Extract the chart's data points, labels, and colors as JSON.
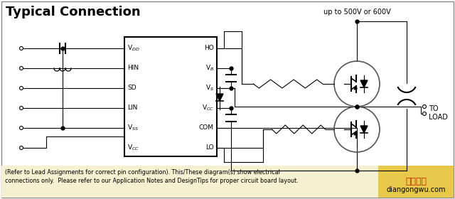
{
  "title": "Typical Connection",
  "subtitle_voltage": "up to 500V or 600V",
  "to_load_label": "TO\nLOAD",
  "ic_left_pins": [
    "V$_{DD}$",
    "HIN",
    "SD",
    "LIN",
    "V$_{SS}$",
    "V$_{CC}$"
  ],
  "ic_right_pins": [
    "HO",
    "V$_{B}$",
    "V$_{S}$",
    "V$_{CC}$",
    "COM",
    "LO"
  ],
  "footnote_line1": "(Refer to Lead Assignments for correct pin configuration). This/These diagram(s) show electrical",
  "footnote_line2": "connections only.  Please refer to our Application Notes and DesignTips for proper circuit board layout.",
  "watermark_line1": "电工之屋",
  "watermark_line2": "diangongwu.com",
  "bg_color": "#ffffff",
  "text_color": "#000000",
  "footnote_bg": "#f5f0d0",
  "watermark_bg": "#e8c84a",
  "watermark_text_color": "#cc2200"
}
